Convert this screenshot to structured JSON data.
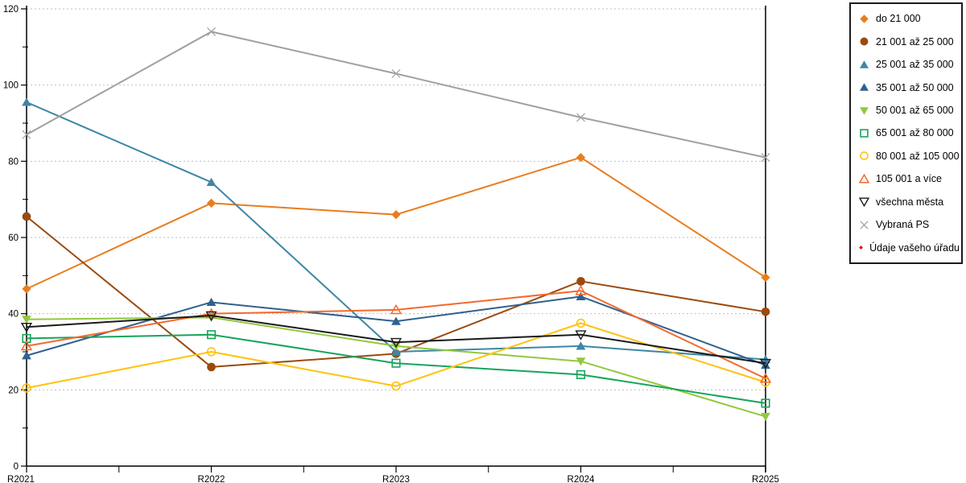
{
  "chart_data": {
    "type": "line",
    "title": "",
    "xlabel": "",
    "ylabel": "",
    "categories": [
      "R2021",
      "R2022",
      "R2023",
      "R2024",
      "R2025"
    ],
    "y_ticks": [
      0,
      20,
      40,
      60,
      80,
      100,
      120
    ],
    "ylim": [
      0,
      120
    ],
    "grid": "horizontal-dashed",
    "gridline_color": "#BFBFBF",
    "axis_color": "#000000",
    "legend_position": "right",
    "series": [
      {
        "name": "do 21 000",
        "color": "#E87D1E",
        "marker": "diamond-filled",
        "values": [
          46.5,
          69,
          66,
          81,
          49.5
        ]
      },
      {
        "name": "21 001 až 25 000",
        "color": "#9A4A0F",
        "marker": "circle-filled",
        "values": [
          65.5,
          26,
          29.5,
          48.5,
          40.5
        ]
      },
      {
        "name": "25 001 až 35 000",
        "color": "#3D87A6",
        "marker": "triangle-up-filled",
        "values": [
          95.5,
          74.5,
          30,
          31.5,
          28
        ]
      },
      {
        "name": "35 001 až 50 000",
        "color": "#30618F",
        "marker": "triangle-up-filled",
        "values": [
          29,
          43,
          38,
          44.5,
          26.5
        ]
      },
      {
        "name": "50 001 až 65 000",
        "color": "#92C83E",
        "marker": "triangle-down-filled",
        "values": [
          38.5,
          39,
          31.5,
          27.5,
          13
        ]
      },
      {
        "name": "65 001 až 80 000",
        "color": "#17A45B",
        "marker": "square-open",
        "values": [
          33.5,
          34.5,
          27,
          24,
          16.5
        ]
      },
      {
        "name": "80 001 až 105 000",
        "color": "#FFC20E",
        "marker": "circle-open",
        "values": [
          20.5,
          30,
          21,
          37.5,
          22
        ]
      },
      {
        "name": "105 001 a více",
        "color": "#F4692B",
        "marker": "triangle-up-open",
        "values": [
          31.5,
          40,
          41,
          46,
          23
        ]
      },
      {
        "name": "všechna města",
        "color": "#1A1A1A",
        "marker": "triangle-down-open",
        "values": [
          36.5,
          39.5,
          32.5,
          34.5,
          27
        ]
      },
      {
        "name": "Vybraná PS",
        "color": "#A0A0A0",
        "marker": "x",
        "values": [
          87,
          114,
          103,
          91.5,
          81
        ]
      },
      {
        "name": "Údaje vašeho úřadu",
        "color": "#E8112D",
        "marker": "diamond-filled",
        "values": []
      }
    ]
  }
}
